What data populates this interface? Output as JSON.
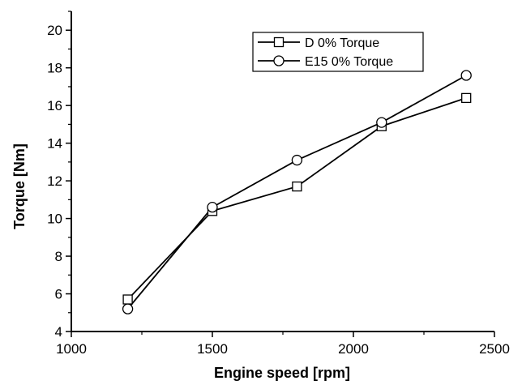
{
  "chart_data": {
    "type": "line",
    "xlabel": "Engine speed [rpm]",
    "ylabel": "Torque [Nm]",
    "xlim": [
      1000,
      2500
    ],
    "ylim": [
      4,
      21
    ],
    "xticks": [
      1000,
      1500,
      2000,
      2500
    ],
    "yticks": [
      4,
      6,
      8,
      10,
      12,
      14,
      16,
      18,
      20
    ],
    "grid": false,
    "legend_position": "top-right",
    "series": [
      {
        "name": "D 0% Torque",
        "marker": "square",
        "x": [
          1200,
          1500,
          1800,
          2100,
          2400
        ],
        "y": [
          5.7,
          10.4,
          11.7,
          14.9,
          16.4
        ]
      },
      {
        "name": "E15 0% Torque",
        "marker": "circle",
        "x": [
          1200,
          1500,
          1800,
          2100,
          2400
        ],
        "y": [
          5.2,
          10.6,
          13.1,
          15.1,
          17.6
        ]
      }
    ]
  }
}
